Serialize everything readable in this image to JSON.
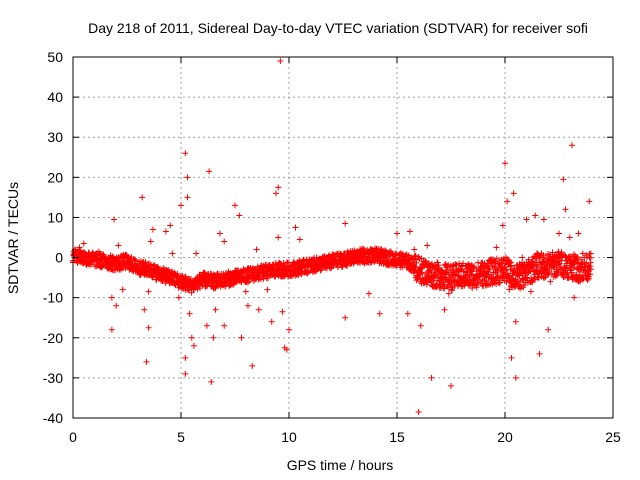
{
  "chart_data": {
    "type": "scatter",
    "title": "Day 218 of 2011, Sidereal Day-to-day VTEC variation (SDTVAR) for receiver sofi",
    "xlabel": "GPS time / hours",
    "ylabel": "SDTVAR / TECUs",
    "xlim": [
      0,
      25
    ],
    "ylim": [
      -40,
      50
    ],
    "x_ticks": [
      0,
      5,
      10,
      15,
      20,
      25
    ],
    "y_ticks": [
      -40,
      -30,
      -20,
      -10,
      0,
      10,
      20,
      30,
      40,
      50
    ],
    "x_tick_labels": [
      "0",
      "5",
      "10",
      "15",
      "20",
      "25"
    ],
    "y_tick_labels": [
      "-40",
      "-30",
      "-20",
      "-10",
      "0",
      "10",
      "20",
      "30",
      "40",
      "50"
    ],
    "grid": true,
    "marker": "+",
    "color": "#ff0000",
    "series": [
      {
        "name": "SDTVAR",
        "baseline": [
          [
            0.0,
            0.5
          ],
          [
            0.5,
            0.0
          ],
          [
            1.0,
            -0.5
          ],
          [
            1.5,
            -1.0
          ],
          [
            2.0,
            -1.5
          ],
          [
            2.5,
            -1.0
          ],
          [
            3.0,
            -2.5
          ],
          [
            3.5,
            -3.0
          ],
          [
            4.0,
            -4.0
          ],
          [
            4.5,
            -5.0
          ],
          [
            5.0,
            -6.0
          ],
          [
            5.5,
            -7.0
          ],
          [
            6.0,
            -5.5
          ],
          [
            6.5,
            -6.0
          ],
          [
            7.0,
            -5.5
          ],
          [
            7.5,
            -5.0
          ],
          [
            8.0,
            -4.5
          ],
          [
            8.5,
            -4.0
          ],
          [
            9.0,
            -3.5
          ],
          [
            9.5,
            -3.0
          ],
          [
            10.0,
            -3.0
          ],
          [
            10.5,
            -2.5
          ],
          [
            11.0,
            -2.0
          ],
          [
            11.5,
            -1.5
          ],
          [
            12.0,
            -1.0
          ],
          [
            12.5,
            -0.5
          ],
          [
            13.0,
            0.0
          ],
          [
            13.5,
            0.5
          ],
          [
            14.0,
            0.5
          ],
          [
            14.5,
            0.0
          ],
          [
            15.0,
            -0.5
          ],
          [
            15.5,
            -1.0
          ],
          [
            16.0,
            -3.0
          ],
          [
            16.5,
            -4.0
          ],
          [
            17.0,
            -4.5
          ],
          [
            17.5,
            -5.0
          ],
          [
            18.0,
            -4.5
          ],
          [
            18.5,
            -4.5
          ],
          [
            19.0,
            -4.0
          ],
          [
            19.5,
            -3.5
          ],
          [
            20.0,
            -3.0
          ],
          [
            20.5,
            -5.0
          ],
          [
            21.0,
            -4.0
          ],
          [
            21.5,
            -2.0
          ],
          [
            22.0,
            -2.0
          ],
          [
            22.5,
            -1.5
          ],
          [
            23.0,
            -2.0
          ],
          [
            23.5,
            -3.0
          ],
          [
            24.0,
            -2.0
          ]
        ],
        "outliers": [
          [
            0.3,
            2.5
          ],
          [
            0.5,
            3.5
          ],
          [
            1.2,
            1.5
          ],
          [
            1.9,
            9.5
          ],
          [
            1.8,
            -10.0
          ],
          [
            1.8,
            -18.0
          ],
          [
            2.0,
            -12.0
          ],
          [
            2.1,
            3.0
          ],
          [
            2.3,
            -8.0
          ],
          [
            3.2,
            15.0
          ],
          [
            3.3,
            -13.0
          ],
          [
            3.4,
            -26.0
          ],
          [
            3.5,
            -17.5
          ],
          [
            3.5,
            -8.5
          ],
          [
            3.6,
            4.0
          ],
          [
            3.7,
            7.0
          ],
          [
            4.3,
            6.5
          ],
          [
            4.5,
            8.0
          ],
          [
            4.6,
            1.0
          ],
          [
            4.8,
            -6.0
          ],
          [
            4.9,
            -10.0
          ],
          [
            5.0,
            13.0
          ],
          [
            5.2,
            26.0
          ],
          [
            5.2,
            -25.0
          ],
          [
            5.2,
            -29.0
          ],
          [
            5.3,
            15.0
          ],
          [
            5.3,
            20.0
          ],
          [
            5.4,
            -14.0
          ],
          [
            5.5,
            -20.0
          ],
          [
            5.6,
            -22.0
          ],
          [
            5.7,
            1.0
          ],
          [
            6.0,
            -7.0
          ],
          [
            6.2,
            -17.0
          ],
          [
            6.3,
            21.5
          ],
          [
            6.4,
            -31.0
          ],
          [
            6.5,
            -20.0
          ],
          [
            6.6,
            -13.0
          ],
          [
            6.8,
            6.0
          ],
          [
            7.0,
            4.0
          ],
          [
            7.0,
            -17.0
          ],
          [
            7.5,
            13.0
          ],
          [
            7.7,
            10.5
          ],
          [
            7.8,
            -20.0
          ],
          [
            8.0,
            -8.5
          ],
          [
            8.1,
            -12.0
          ],
          [
            8.3,
            -27.0
          ],
          [
            8.5,
            2.0
          ],
          [
            8.6,
            -13.0
          ],
          [
            9.0,
            -8.0
          ],
          [
            9.2,
            -16.0
          ],
          [
            9.4,
            16.0
          ],
          [
            9.5,
            17.5
          ],
          [
            9.5,
            5.0
          ],
          [
            9.6,
            49.0
          ],
          [
            9.7,
            -13.5
          ],
          [
            9.8,
            -22.5
          ],
          [
            9.9,
            -23.0
          ],
          [
            10.0,
            -18.0
          ],
          [
            10.3,
            7.5
          ],
          [
            10.5,
            4.5
          ],
          [
            12.6,
            8.5
          ],
          [
            12.6,
            -15.0
          ],
          [
            13.5,
            -1.5
          ],
          [
            13.7,
            -9.0
          ],
          [
            14.2,
            -14.0
          ],
          [
            15.0,
            6.0
          ],
          [
            15.5,
            -14.0
          ],
          [
            15.6,
            6.5
          ],
          [
            15.8,
            2.0
          ],
          [
            16.0,
            -38.5
          ],
          [
            16.1,
            -17.0
          ],
          [
            16.4,
            3.0
          ],
          [
            16.6,
            -30.0
          ],
          [
            16.7,
            -5.0
          ],
          [
            17.2,
            -13.0
          ],
          [
            17.4,
            -9.0
          ],
          [
            17.5,
            -32.0
          ],
          [
            18.0,
            -6.0
          ],
          [
            19.6,
            2.5
          ],
          [
            19.9,
            8.0
          ],
          [
            20.0,
            23.5
          ],
          [
            20.1,
            14.0
          ],
          [
            20.2,
            -8.0
          ],
          [
            20.3,
            -25.0
          ],
          [
            20.4,
            16.0
          ],
          [
            20.5,
            -30.0
          ],
          [
            20.5,
            -16.0
          ],
          [
            20.8,
            0.0
          ],
          [
            21.0,
            9.5
          ],
          [
            21.2,
            -8.5
          ],
          [
            21.4,
            10.5
          ],
          [
            21.6,
            -24.0
          ],
          [
            21.8,
            9.5
          ],
          [
            22.0,
            -18.0
          ],
          [
            22.1,
            -6.0
          ],
          [
            22.5,
            6.0
          ],
          [
            22.7,
            19.5
          ],
          [
            22.8,
            12.0
          ],
          [
            23.0,
            5.0
          ],
          [
            23.1,
            28.0
          ],
          [
            23.2,
            -10.0
          ],
          [
            23.4,
            6.0
          ],
          [
            23.6,
            1.0
          ],
          [
            23.9,
            14.0
          ]
        ]
      }
    ]
  }
}
